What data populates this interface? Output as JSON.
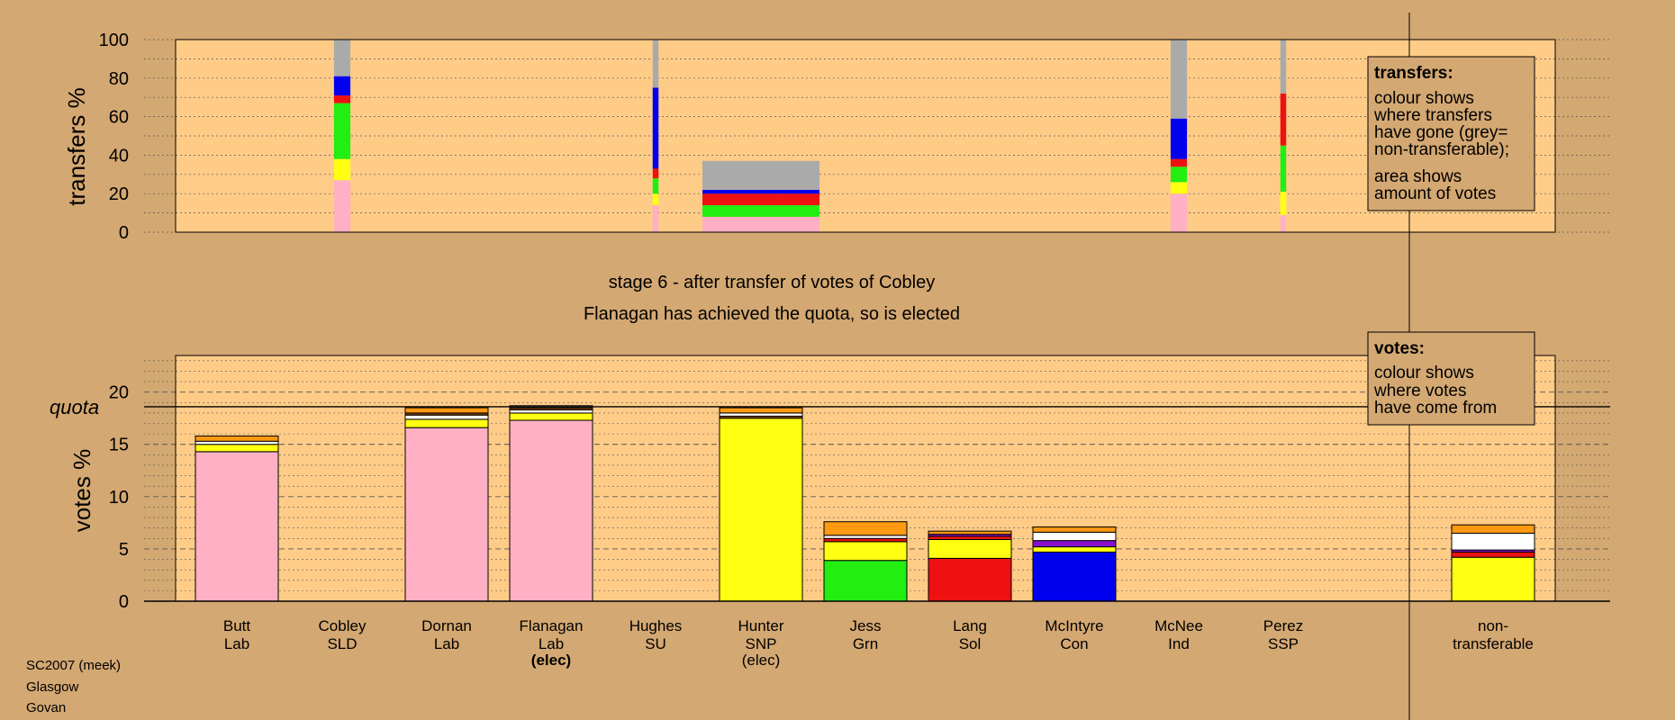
{
  "colors": {
    "background": "#d4a872",
    "plot_bg": "#ffcc88",
    "lab": "#ffb0c4",
    "snp": "#ffff11",
    "grn": "#22ee11",
    "sol": "#ee1111",
    "con": "#0000ee",
    "nontransfer": "#aaaaaa",
    "orange": "#ff9911",
    "white": "#ffffff",
    "purple": "#8811cc",
    "brown": "#884400",
    "black": "#000000"
  },
  "stage": {
    "line1": "stage 6 - after transfer of votes of Cobley",
    "line2": "Flanagan has achieved the quota, so is elected"
  },
  "footer": [
    "SC2007 (meek)",
    "Glasgow",
    "Govan"
  ],
  "legend_transfers": {
    "title": "transfers:",
    "lines": [
      "colour shows",
      "where transfers",
      "have gone (grey=",
      "non-transferable);",
      "area shows",
      "amount of votes"
    ]
  },
  "legend_votes": {
    "title": "votes:",
    "lines": [
      "colour shows",
      "where votes",
      "have come from"
    ]
  },
  "candidates": [
    {
      "name": "Butt",
      "party": "Lab",
      "note": ""
    },
    {
      "name": "Cobley",
      "party": "SLD",
      "note": ""
    },
    {
      "name": "Dornan",
      "party": "Lab",
      "note": ""
    },
    {
      "name": "Flanagan",
      "party": "Lab",
      "note": "(elec)",
      "note_bold": true
    },
    {
      "name": "Hughes",
      "party": "SU",
      "note": ""
    },
    {
      "name": "Hunter",
      "party": "SNP",
      "note": "(elec)",
      "note_bold": false
    },
    {
      "name": "Jess",
      "party": "Grn",
      "note": ""
    },
    {
      "name": "Lang",
      "party": "Sol",
      "note": ""
    },
    {
      "name": "McIntyre",
      "party": "Con",
      "note": ""
    },
    {
      "name": "McNee",
      "party": "Ind",
      "note": ""
    },
    {
      "name": "Perez",
      "party": "SSP",
      "note": ""
    },
    {
      "name": "non-",
      "party": "transferable",
      "note": ""
    }
  ],
  "chart_data": [
    {
      "type": "bar",
      "ylabel": "transfers %",
      "ylim": [
        0,
        100
      ],
      "yticks": [
        0,
        20,
        40,
        60,
        80,
        100
      ],
      "grid": true,
      "columns": [
        {
          "candidate": "Cobley",
          "width": 0.14,
          "segments": [
            {
              "color": "lab",
              "value": 27
            },
            {
              "color": "snp",
              "value": 11
            },
            {
              "color": "grn",
              "value": 29
            },
            {
              "color": "sol",
              "value": 4
            },
            {
              "color": "con",
              "value": 10
            },
            {
              "color": "nontransfer",
              "value": 19
            }
          ]
        },
        {
          "candidate": "Hughes",
          "width": 0.05,
          "segments": [
            {
              "color": "lab",
              "value": 14
            },
            {
              "color": "snp",
              "value": 6
            },
            {
              "color": "grn",
              "value": 8
            },
            {
              "color": "sol",
              "value": 5
            },
            {
              "color": "con",
              "value": 42
            },
            {
              "color": "nontransfer",
              "value": 25
            }
          ]
        },
        {
          "candidate": "Hunter",
          "width": 1.0,
          "segments": [
            {
              "color": "lab",
              "value": 8
            },
            {
              "color": "grn",
              "value": 6
            },
            {
              "color": "sol",
              "value": 6
            },
            {
              "color": "con",
              "value": 2
            },
            {
              "color": "nontransfer",
              "value": 15
            }
          ]
        },
        {
          "candidate": "McNee",
          "width": 0.14,
          "segments": [
            {
              "color": "lab",
              "value": 20
            },
            {
              "color": "snp",
              "value": 6
            },
            {
              "color": "grn",
              "value": 8
            },
            {
              "color": "sol",
              "value": 4
            },
            {
              "color": "con",
              "value": 21
            },
            {
              "color": "nontransfer",
              "value": 41
            }
          ]
        },
        {
          "candidate": "Perez",
          "width": 0.05,
          "segments": [
            {
              "color": "lab",
              "value": 9
            },
            {
              "color": "snp",
              "value": 12
            },
            {
              "color": "grn",
              "value": 24
            },
            {
              "color": "sol",
              "value": 27
            },
            {
              "color": "nontransfer",
              "value": 28
            }
          ]
        }
      ]
    },
    {
      "type": "bar",
      "ylabel": "votes %",
      "ylim": [
        0,
        23.5
      ],
      "yticks": [
        0,
        5,
        10,
        15,
        20
      ],
      "quota": 18.6,
      "quota_label": "quota",
      "grid": true,
      "columns": [
        {
          "candidate": "Butt",
          "segments": [
            {
              "color": "lab",
              "value": 14.3
            },
            {
              "color": "snp",
              "value": 0.7
            },
            {
              "color": "white",
              "value": 0.3
            },
            {
              "color": "orange",
              "value": 0.5
            }
          ]
        },
        {
          "candidate": "Dornan",
          "segments": [
            {
              "color": "lab",
              "value": 16.6
            },
            {
              "color": "snp",
              "value": 0.8
            },
            {
              "color": "white",
              "value": 0.4
            },
            {
              "color": "brown",
              "value": 0.2
            },
            {
              "color": "orange",
              "value": 0.5
            }
          ]
        },
        {
          "candidate": "Flanagan",
          "segments": [
            {
              "color": "lab",
              "value": 17.3
            },
            {
              "color": "snp",
              "value": 0.7
            },
            {
              "color": "white",
              "value": 0.3
            },
            {
              "color": "brown",
              "value": 0.2
            },
            {
              "color": "white",
              "value": 0.2
            }
          ]
        },
        {
          "candidate": "Hunter",
          "segments": [
            {
              "color": "snp",
              "value": 17.5
            },
            {
              "color": "brown",
              "value": 0.2
            },
            {
              "color": "white",
              "value": 0.3
            },
            {
              "color": "orange",
              "value": 0.5
            }
          ]
        },
        {
          "candidate": "Jess",
          "segments": [
            {
              "color": "grn",
              "value": 3.9
            },
            {
              "color": "snp",
              "value": 1.8
            },
            {
              "color": "sol",
              "value": 0.3
            },
            {
              "color": "white",
              "value": 0.3
            },
            {
              "color": "orange",
              "value": 1.3
            }
          ]
        },
        {
          "candidate": "Lang",
          "segments": [
            {
              "color": "sol",
              "value": 4.1
            },
            {
              "color": "snp",
              "value": 1.8
            },
            {
              "color": "sol",
              "value": 0.3
            },
            {
              "color": "purple",
              "value": 0.2
            },
            {
              "color": "orange",
              "value": 0.3
            }
          ]
        },
        {
          "candidate": "McIntyre",
          "segments": [
            {
              "color": "con",
              "value": 4.7
            },
            {
              "color": "snp",
              "value": 0.5
            },
            {
              "color": "purple",
              "value": 0.6
            },
            {
              "color": "white",
              "value": 0.8
            },
            {
              "color": "orange",
              "value": 0.5
            }
          ]
        },
        {
          "candidate": "non-",
          "segments": [
            {
              "color": "snp",
              "value": 4.2
            },
            {
              "color": "sol",
              "value": 0.5
            },
            {
              "color": "purple",
              "value": 0.2
            },
            {
              "color": "white",
              "value": 1.6
            },
            {
              "color": "orange",
              "value": 0.8
            }
          ]
        }
      ]
    }
  ]
}
